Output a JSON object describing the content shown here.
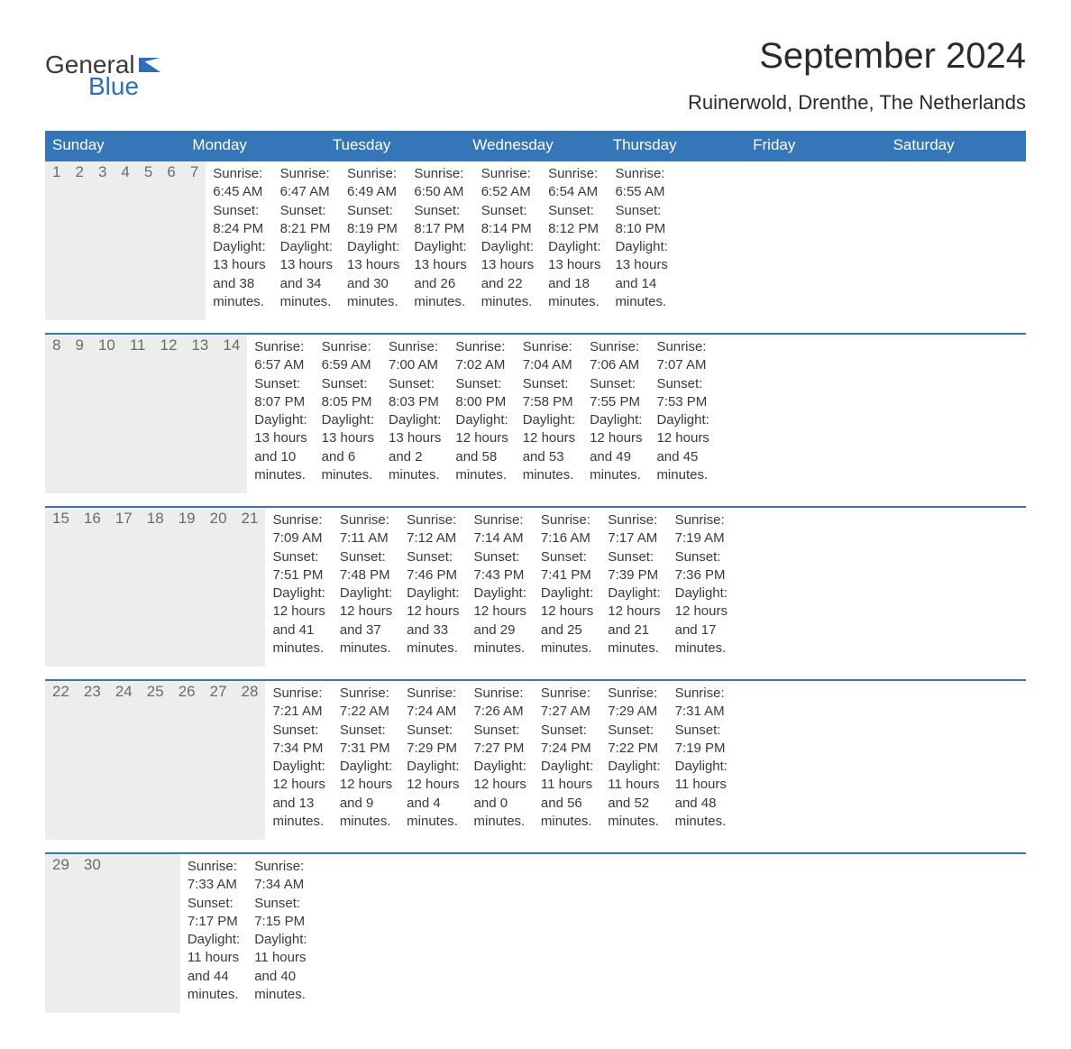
{
  "logo": {
    "line1": "General",
    "line2": "Blue"
  },
  "title": "September 2024",
  "location": "Ruinerwold, Drenthe, The Netherlands",
  "colors": {
    "header_bg": "#3576b9",
    "header_text": "#ffffff",
    "daynum_bg": "#eceded",
    "daynum_text": "#6b6b6b",
    "body_text": "#3a3a3a",
    "rule": "#3576b9",
    "background": "#ffffff",
    "logo_gray": "#3a3a3a",
    "logo_blue": "#2f6fb5"
  },
  "typography": {
    "title_fontsize": 40,
    "location_fontsize": 22,
    "dow_fontsize": 17,
    "daynum_fontsize": 17,
    "cell_fontsize": 15,
    "logo_fontsize": 28
  },
  "days_of_week": [
    "Sunday",
    "Monday",
    "Tuesday",
    "Wednesday",
    "Thursday",
    "Friday",
    "Saturday"
  ],
  "weeks": [
    [
      {
        "n": "1",
        "sunrise": "6:45 AM",
        "sunset": "8:24 PM",
        "dl1": "Daylight: 13 hours",
        "dl2": "and 38 minutes."
      },
      {
        "n": "2",
        "sunrise": "6:47 AM",
        "sunset": "8:21 PM",
        "dl1": "Daylight: 13 hours",
        "dl2": "and 34 minutes."
      },
      {
        "n": "3",
        "sunrise": "6:49 AM",
        "sunset": "8:19 PM",
        "dl1": "Daylight: 13 hours",
        "dl2": "and 30 minutes."
      },
      {
        "n": "4",
        "sunrise": "6:50 AM",
        "sunset": "8:17 PM",
        "dl1": "Daylight: 13 hours",
        "dl2": "and 26 minutes."
      },
      {
        "n": "5",
        "sunrise": "6:52 AM",
        "sunset": "8:14 PM",
        "dl1": "Daylight: 13 hours",
        "dl2": "and 22 minutes."
      },
      {
        "n": "6",
        "sunrise": "6:54 AM",
        "sunset": "8:12 PM",
        "dl1": "Daylight: 13 hours",
        "dl2": "and 18 minutes."
      },
      {
        "n": "7",
        "sunrise": "6:55 AM",
        "sunset": "8:10 PM",
        "dl1": "Daylight: 13 hours",
        "dl2": "and 14 minutes."
      }
    ],
    [
      {
        "n": "8",
        "sunrise": "6:57 AM",
        "sunset": "8:07 PM",
        "dl1": "Daylight: 13 hours",
        "dl2": "and 10 minutes."
      },
      {
        "n": "9",
        "sunrise": "6:59 AM",
        "sunset": "8:05 PM",
        "dl1": "Daylight: 13 hours",
        "dl2": "and 6 minutes."
      },
      {
        "n": "10",
        "sunrise": "7:00 AM",
        "sunset": "8:03 PM",
        "dl1": "Daylight: 13 hours",
        "dl2": "and 2 minutes."
      },
      {
        "n": "11",
        "sunrise": "7:02 AM",
        "sunset": "8:00 PM",
        "dl1": "Daylight: 12 hours",
        "dl2": "and 58 minutes."
      },
      {
        "n": "12",
        "sunrise": "7:04 AM",
        "sunset": "7:58 PM",
        "dl1": "Daylight: 12 hours",
        "dl2": "and 53 minutes."
      },
      {
        "n": "13",
        "sunrise": "7:06 AM",
        "sunset": "7:55 PM",
        "dl1": "Daylight: 12 hours",
        "dl2": "and 49 minutes."
      },
      {
        "n": "14",
        "sunrise": "7:07 AM",
        "sunset": "7:53 PM",
        "dl1": "Daylight: 12 hours",
        "dl2": "and 45 minutes."
      }
    ],
    [
      {
        "n": "15",
        "sunrise": "7:09 AM",
        "sunset": "7:51 PM",
        "dl1": "Daylight: 12 hours",
        "dl2": "and 41 minutes."
      },
      {
        "n": "16",
        "sunrise": "7:11 AM",
        "sunset": "7:48 PM",
        "dl1": "Daylight: 12 hours",
        "dl2": "and 37 minutes."
      },
      {
        "n": "17",
        "sunrise": "7:12 AM",
        "sunset": "7:46 PM",
        "dl1": "Daylight: 12 hours",
        "dl2": "and 33 minutes."
      },
      {
        "n": "18",
        "sunrise": "7:14 AM",
        "sunset": "7:43 PM",
        "dl1": "Daylight: 12 hours",
        "dl2": "and 29 minutes."
      },
      {
        "n": "19",
        "sunrise": "7:16 AM",
        "sunset": "7:41 PM",
        "dl1": "Daylight: 12 hours",
        "dl2": "and 25 minutes."
      },
      {
        "n": "20",
        "sunrise": "7:17 AM",
        "sunset": "7:39 PM",
        "dl1": "Daylight: 12 hours",
        "dl2": "and 21 minutes."
      },
      {
        "n": "21",
        "sunrise": "7:19 AM",
        "sunset": "7:36 PM",
        "dl1": "Daylight: 12 hours",
        "dl2": "and 17 minutes."
      }
    ],
    [
      {
        "n": "22",
        "sunrise": "7:21 AM",
        "sunset": "7:34 PM",
        "dl1": "Daylight: 12 hours",
        "dl2": "and 13 minutes."
      },
      {
        "n": "23",
        "sunrise": "7:22 AM",
        "sunset": "7:31 PM",
        "dl1": "Daylight: 12 hours",
        "dl2": "and 9 minutes."
      },
      {
        "n": "24",
        "sunrise": "7:24 AM",
        "sunset": "7:29 PM",
        "dl1": "Daylight: 12 hours",
        "dl2": "and 4 minutes."
      },
      {
        "n": "25",
        "sunrise": "7:26 AM",
        "sunset": "7:27 PM",
        "dl1": "Daylight: 12 hours",
        "dl2": "and 0 minutes."
      },
      {
        "n": "26",
        "sunrise": "7:27 AM",
        "sunset": "7:24 PM",
        "dl1": "Daylight: 11 hours",
        "dl2": "and 56 minutes."
      },
      {
        "n": "27",
        "sunrise": "7:29 AM",
        "sunset": "7:22 PM",
        "dl1": "Daylight: 11 hours",
        "dl2": "and 52 minutes."
      },
      {
        "n": "28",
        "sunrise": "7:31 AM",
        "sunset": "7:19 PM",
        "dl1": "Daylight: 11 hours",
        "dl2": "and 48 minutes."
      }
    ],
    [
      {
        "n": "29",
        "sunrise": "7:33 AM",
        "sunset": "7:17 PM",
        "dl1": "Daylight: 11 hours",
        "dl2": "and 44 minutes."
      },
      {
        "n": "30",
        "sunrise": "7:34 AM",
        "sunset": "7:15 PM",
        "dl1": "Daylight: 11 hours",
        "dl2": "and 40 minutes."
      },
      null,
      null,
      null,
      null,
      null
    ]
  ],
  "labels": {
    "sunrise_prefix": "Sunrise: ",
    "sunset_prefix": "Sunset: "
  }
}
